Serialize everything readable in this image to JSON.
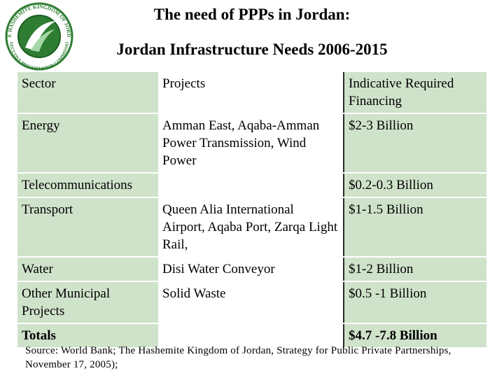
{
  "logo": {
    "text": "THE HASHEMITE KINGDOM OF JORDAN · EXECUTIVE PRIVATIZATION COMMISSION",
    "colors": {
      "ring": "#2e7d32",
      "inner": "#ffffff"
    }
  },
  "title": {
    "line1": "The need of PPPs in Jordan:",
    "line2": "Jordan Infrastructure Needs 2006-2015"
  },
  "table": {
    "headers": {
      "sector": "Sector",
      "projects": "Projects",
      "financing_line1": "Indicative Required",
      "financing_line2": "Financing"
    },
    "rows": [
      {
        "sector": "Energy",
        "projects": "Amman East, Aqaba-Amman Power Transmission, Wind Power",
        "financing": "$2-3 Billion"
      },
      {
        "sector": "Telecommunications",
        "projects": "",
        "financing": "$0.2-0.3  Billion"
      },
      {
        "sector": "Transport",
        "projects": "Queen Alia International Airport, Aqaba Port, Zarqa Light Rail,",
        "financing": "$1-1.5 Billion"
      },
      {
        "sector": "Water",
        "projects": "Disi Water Conveyor",
        "financing": "$1-2 Billion"
      },
      {
        "sector": "Other  Municipal Projects",
        "projects": "Solid Waste",
        "financing": "$0.5 -1 Billion"
      }
    ],
    "totals": {
      "label": "Totals",
      "projects": "",
      "financing": "$4.7 -7.8 Billion"
    },
    "colors": {
      "shade": "#cfe2ca",
      "white": "#ffffff"
    }
  },
  "source": "Source: World Bank; The Hashemite Kingdom of Jordan, Strategy for Public Private Partnerships, November 17, 2005);"
}
